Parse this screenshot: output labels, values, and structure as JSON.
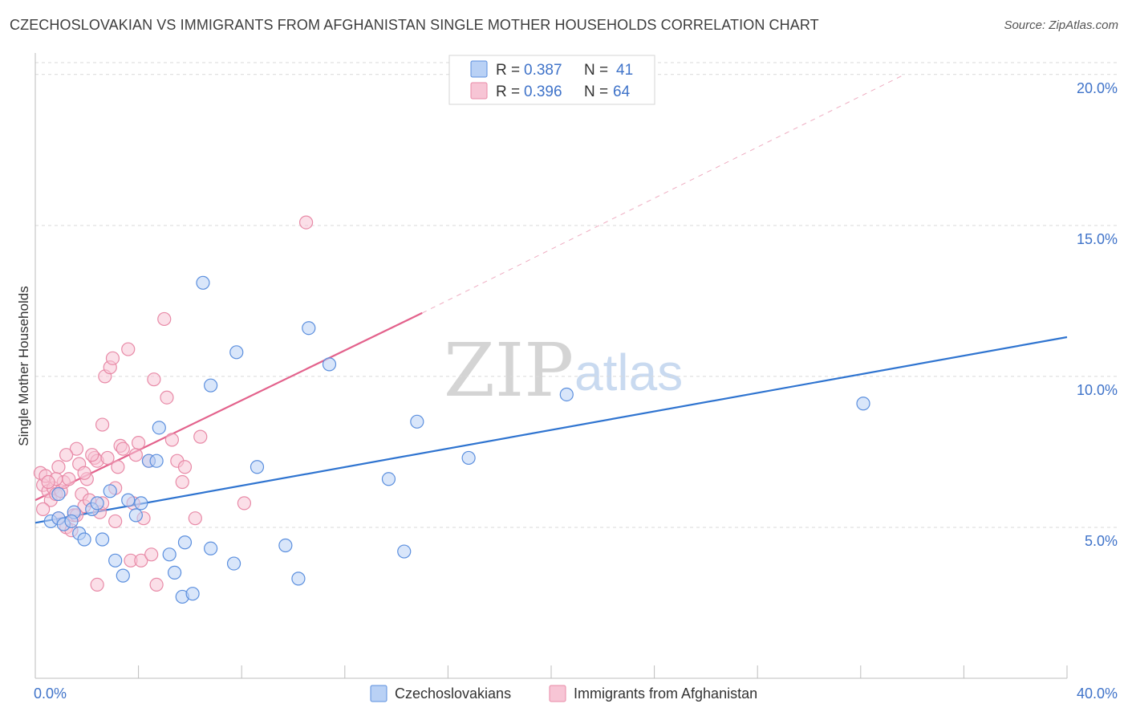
{
  "title": "CZECHOSLOVAKIAN VS IMMIGRANTS FROM AFGHANISTAN SINGLE MOTHER HOUSEHOLDS CORRELATION CHART",
  "source": "Source: ZipAtlas.com",
  "watermark": {
    "zip": "ZIP",
    "atlas": "atlas"
  },
  "colors": {
    "blue": "#5b8fde",
    "blue_fill": "#b9d1f5",
    "blue_line": "#2f74d0",
    "pink": "#e88aa7",
    "pink_fill": "#f7c5d5",
    "pink_line": "#e3628c",
    "grid": "#d9d9d9",
    "tick_text": "#3f73c9"
  },
  "legend": {
    "rows": [
      {
        "r_label": "R = ",
        "r_value": "0.387",
        "n_label": "N = ",
        "n_value": "41"
      },
      {
        "r_label": "R = ",
        "r_value": "0.396",
        "n_label": "N = ",
        "n_value": "64"
      }
    ]
  },
  "chart_data": {
    "type": "scatter",
    "title": "CZECHOSLOVAKIAN VS IMMIGRANTS FROM AFGHANISTAN SINGLE MOTHER HOUSEHOLDS CORRELATION CHART",
    "xlabel": "",
    "ylabel": "Single Mother Households",
    "xlim": [
      0,
      40
    ],
    "ylim": [
      0,
      20.5
    ],
    "x_tick_labels": [
      "0.0%",
      "40.0%"
    ],
    "y_ticks": [
      5,
      10,
      15,
      20
    ],
    "y_tick_labels": [
      "5.0%",
      "10.0%",
      "15.0%",
      "20.0%"
    ],
    "grid": true,
    "series": [
      {
        "name": "Czechoslovakians",
        "r": 0.387,
        "n": 41,
        "trend": {
          "x0": 0,
          "y0": 5.15,
          "x1": 40,
          "y1": 11.3
        },
        "points": [
          [
            0.6,
            5.2
          ],
          [
            0.9,
            5.3
          ],
          [
            1.1,
            5.1
          ],
          [
            1.5,
            5.5
          ],
          [
            1.4,
            5.2
          ],
          [
            1.7,
            4.8
          ],
          [
            1.9,
            4.6
          ],
          [
            2.2,
            5.6
          ],
          [
            2.4,
            5.8
          ],
          [
            2.6,
            4.6
          ],
          [
            2.9,
            6.2
          ],
          [
            3.1,
            3.9
          ],
          [
            3.4,
            3.4
          ],
          [
            3.6,
            5.9
          ],
          [
            3.9,
            5.4
          ],
          [
            4.1,
            5.8
          ],
          [
            4.4,
            7.2
          ],
          [
            4.7,
            7.2
          ],
          [
            4.8,
            8.3
          ],
          [
            5.2,
            4.1
          ],
          [
            5.4,
            3.5
          ],
          [
            5.7,
            2.7
          ],
          [
            5.8,
            4.5
          ],
          [
            6.1,
            2.8
          ],
          [
            6.5,
            13.1
          ],
          [
            6.8,
            9.7
          ],
          [
            6.8,
            4.3
          ],
          [
            7.7,
            3.8
          ],
          [
            7.8,
            10.8
          ],
          [
            8.6,
            7.0
          ],
          [
            9.7,
            4.4
          ],
          [
            10.2,
            3.3
          ],
          [
            10.6,
            11.6
          ],
          [
            11.4,
            10.4
          ],
          [
            13.7,
            6.6
          ],
          [
            14.3,
            4.2
          ],
          [
            14.8,
            8.5
          ],
          [
            16.8,
            7.3
          ],
          [
            20.6,
            9.4
          ],
          [
            32.1,
            9.1
          ],
          [
            0.9,
            6.1
          ]
        ]
      },
      {
        "name": "Immigrants from Afghanistan",
        "r": 0.396,
        "n": 64,
        "trend": {
          "x0": 0,
          "y0": 5.9,
          "x1": 15.0,
          "y1": 12.1
        },
        "trend_ext": {
          "x0": 15.0,
          "y0": 12.1,
          "x1": 33.7,
          "y1": 20.0
        },
        "points": [
          [
            0.2,
            6.8
          ],
          [
            0.3,
            6.4
          ],
          [
            0.4,
            6.7
          ],
          [
            0.5,
            6.2
          ],
          [
            0.6,
            5.9
          ],
          [
            0.7,
            6.3
          ],
          [
            0.8,
            6.1
          ],
          [
            0.9,
            7.0
          ],
          [
            0.9,
            5.3
          ],
          [
            1.0,
            6.2
          ],
          [
            1.1,
            6.5
          ],
          [
            1.2,
            5.0
          ],
          [
            1.3,
            6.6
          ],
          [
            1.4,
            4.9
          ],
          [
            1.5,
            5.4
          ],
          [
            1.6,
            7.6
          ],
          [
            1.7,
            7.1
          ],
          [
            1.8,
            6.1
          ],
          [
            1.9,
            5.7
          ],
          [
            2.0,
            6.6
          ],
          [
            2.1,
            5.9
          ],
          [
            2.3,
            7.3
          ],
          [
            2.4,
            7.2
          ],
          [
            2.5,
            5.5
          ],
          [
            2.6,
            8.4
          ],
          [
            2.7,
            10.0
          ],
          [
            2.8,
            7.3
          ],
          [
            2.9,
            10.3
          ],
          [
            3.0,
            10.6
          ],
          [
            3.1,
            5.2
          ],
          [
            3.2,
            7.0
          ],
          [
            3.3,
            7.7
          ],
          [
            3.4,
            7.6
          ],
          [
            3.6,
            10.9
          ],
          [
            3.7,
            3.9
          ],
          [
            3.8,
            5.8
          ],
          [
            3.9,
            7.4
          ],
          [
            4.0,
            7.8
          ],
          [
            4.1,
            3.9
          ],
          [
            4.2,
            5.3
          ],
          [
            4.4,
            7.2
          ],
          [
            4.5,
            4.1
          ],
          [
            4.6,
            9.9
          ],
          [
            4.7,
            3.1
          ],
          [
            5.0,
            11.9
          ],
          [
            5.1,
            9.3
          ],
          [
            5.3,
            7.9
          ],
          [
            5.5,
            7.2
          ],
          [
            5.7,
            6.5
          ],
          [
            5.8,
            7.0
          ],
          [
            6.2,
            5.3
          ],
          [
            6.4,
            8.0
          ],
          [
            8.1,
            5.8
          ],
          [
            10.5,
            15.1
          ],
          [
            0.3,
            5.6
          ],
          [
            0.8,
            6.6
          ],
          [
            1.2,
            7.4
          ],
          [
            1.6,
            5.4
          ],
          [
            1.9,
            6.8
          ],
          [
            2.2,
            7.4
          ],
          [
            2.4,
            3.1
          ],
          [
            2.6,
            5.8
          ],
          [
            3.1,
            6.3
          ],
          [
            0.5,
            6.5
          ]
        ]
      }
    ]
  }
}
